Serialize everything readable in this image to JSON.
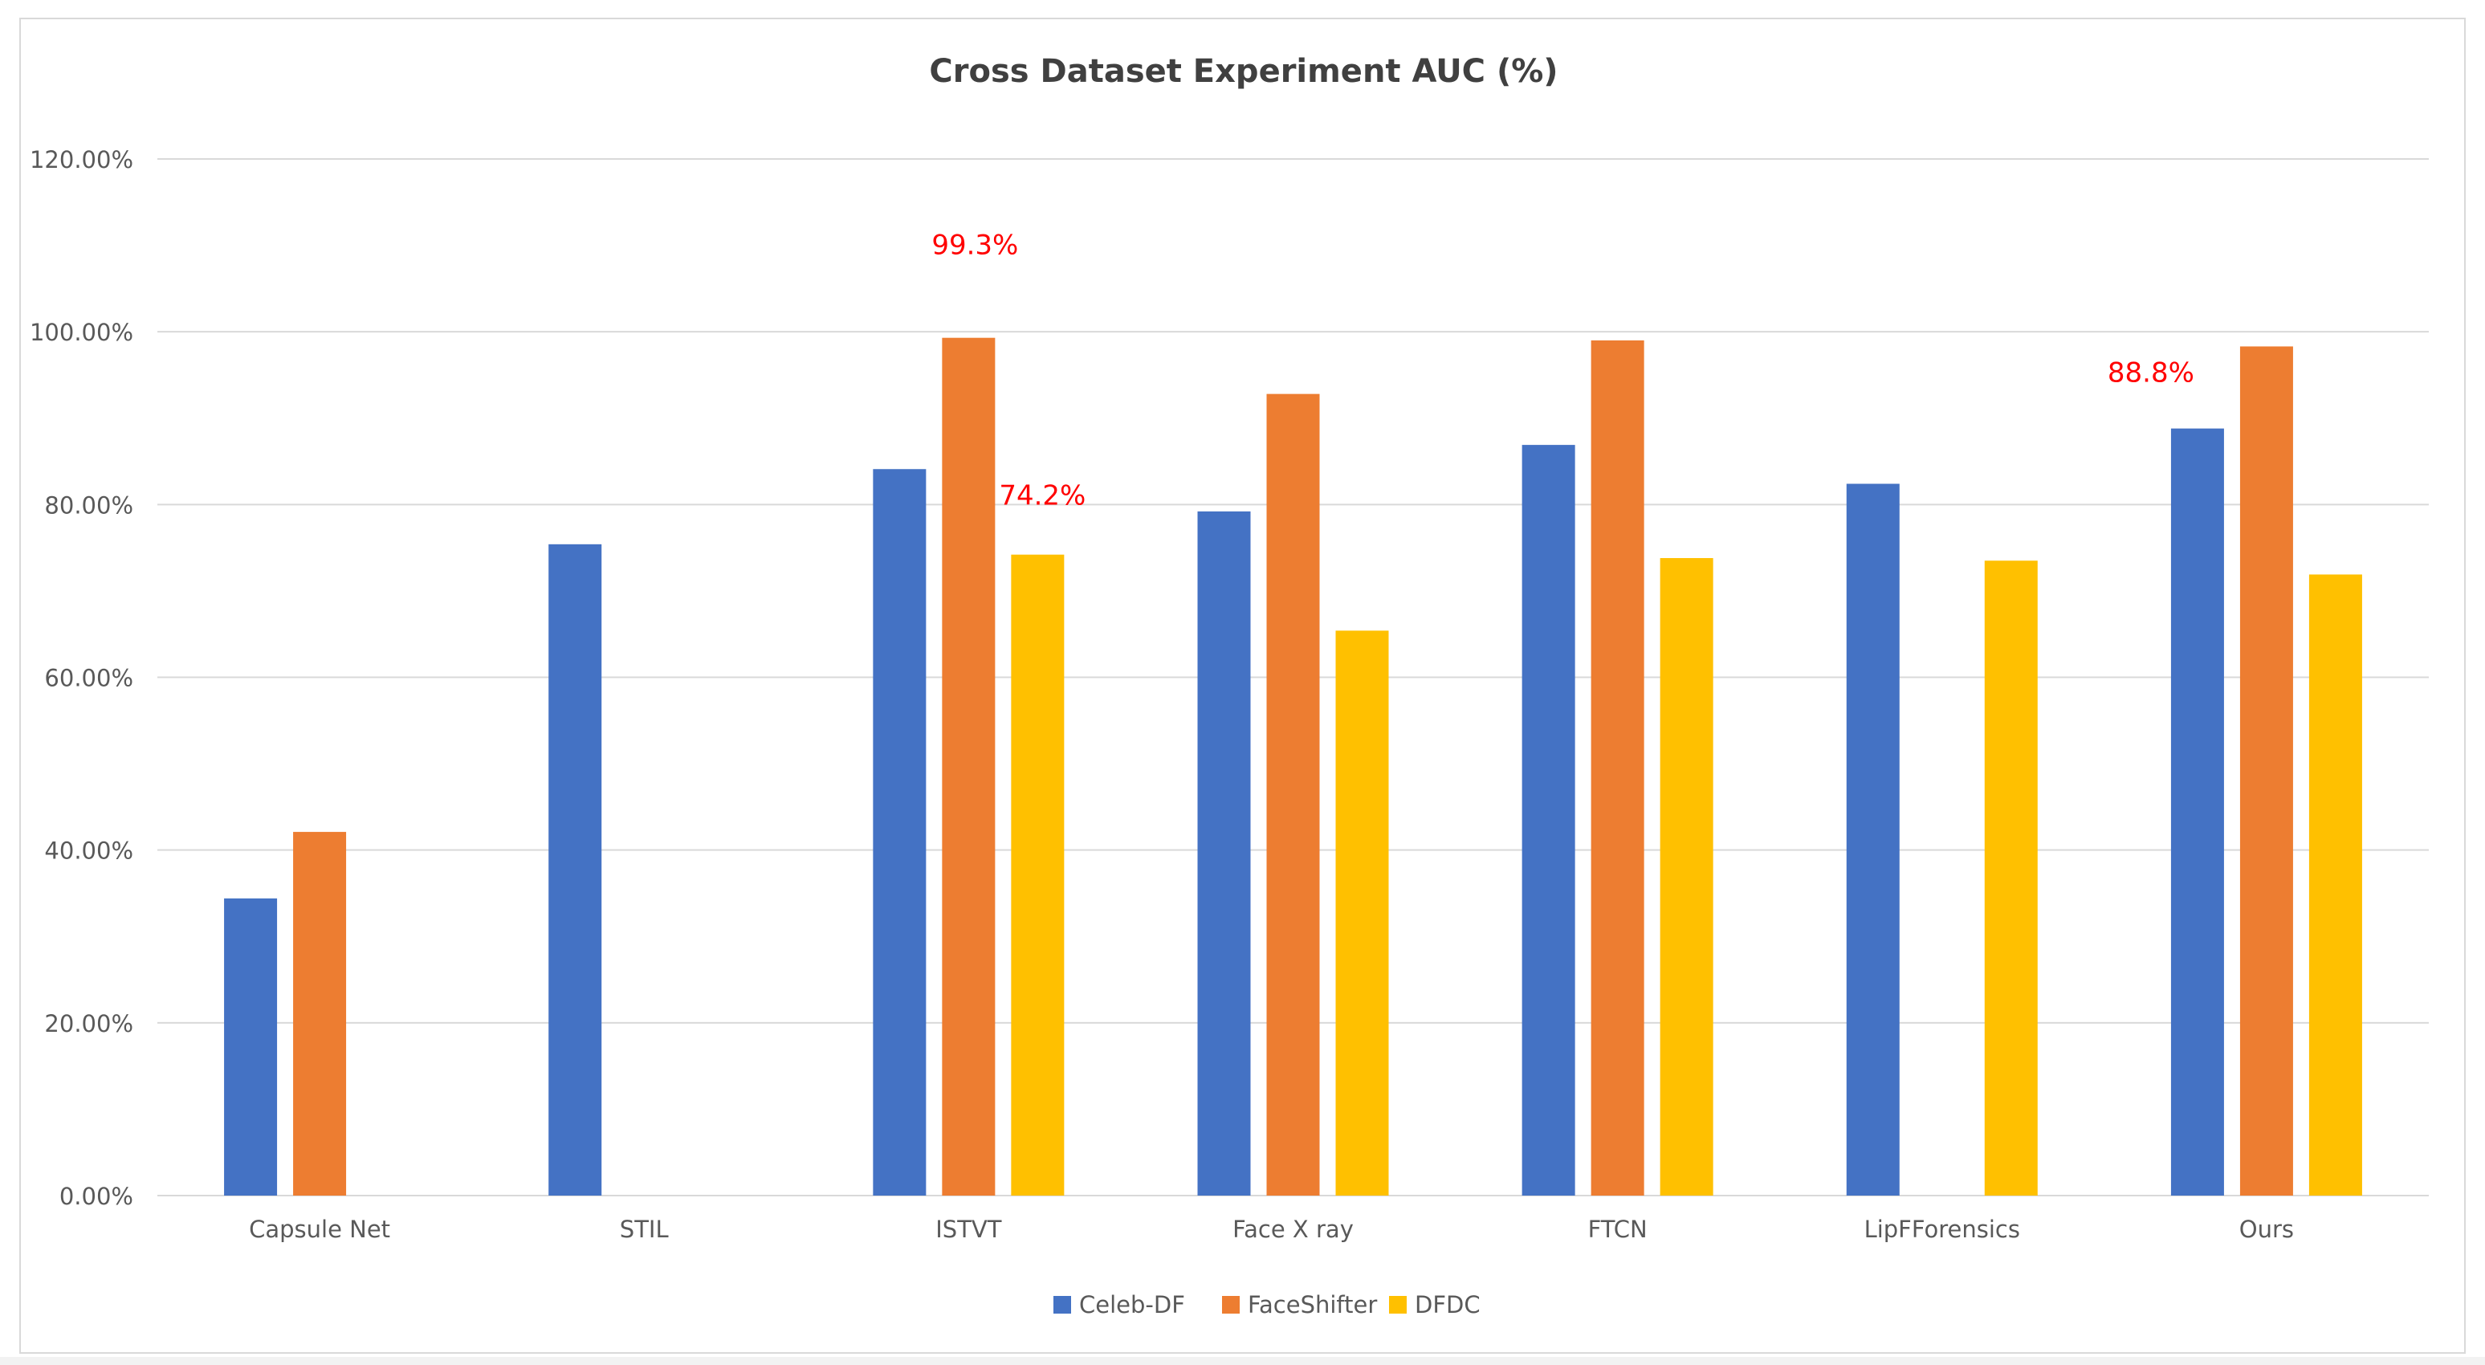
{
  "chart_data": {
    "type": "bar",
    "title": "Cross Dataset Experiment AUC (%)",
    "xlabel": "",
    "ylabel": "",
    "ylim": [
      0,
      120
    ],
    "y_ticks": [
      0,
      20,
      40,
      60,
      80,
      100,
      120
    ],
    "y_tick_labels": [
      "0.00%",
      "20.00%",
      "40.00%",
      "60.00%",
      "80.00%",
      "100.00%",
      "120.00%"
    ],
    "grid": true,
    "legend_position": "bottom-center",
    "categories": [
      "Capsule Net",
      "STIL",
      "ISTVT",
      "Face X ray",
      "FTCN",
      "LipFForensics",
      "Ours"
    ],
    "series": [
      {
        "name": "Celeb-DF",
        "color": "#4472C4",
        "values": [
          34.4,
          75.4,
          84.1,
          79.2,
          86.9,
          82.4,
          88.8
        ]
      },
      {
        "name": "FaceShifter",
        "color": "#ED7D31",
        "values": [
          42.1,
          null,
          99.3,
          92.8,
          99.0,
          null,
          98.3
        ]
      },
      {
        "name": "DFDC",
        "color": "#FFC000",
        "values": [
          null,
          null,
          74.2,
          65.4,
          73.8,
          73.5,
          71.9
        ]
      }
    ],
    "annotations": [
      {
        "text": "99.3%",
        "category": "ISTVT",
        "series": "FaceShifter",
        "color": "#FF0000"
      },
      {
        "text": "74.2%",
        "category": "ISTVT",
        "series": "DFDC",
        "color": "#FF0000"
      },
      {
        "text": "88.8%",
        "category": "Ours",
        "series": "Celeb-DF",
        "color": "#FF0000"
      }
    ]
  },
  "colors": {
    "gridline": "#D9D9D9",
    "axis_text": "#595959",
    "title_text": "#404040"
  }
}
